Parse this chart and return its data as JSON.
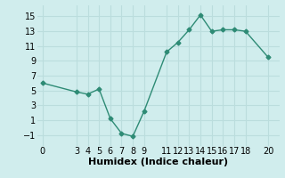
{
  "x": [
    0,
    3,
    4,
    5,
    6,
    7,
    8,
    9,
    11,
    12,
    13,
    14,
    15,
    16,
    17,
    18,
    20
  ],
  "y": [
    6,
    4.8,
    4.5,
    5.2,
    1.2,
    -0.8,
    -1.2,
    2.2,
    10.2,
    11.5,
    13.2,
    15.2,
    13.0,
    13.2,
    13.2,
    13.0,
    9.5
  ],
  "line_color": "#2E8B75",
  "marker": "D",
  "marker_size": 2.5,
  "bg_color": "#D0EDED",
  "grid_color": "#BBDDDD",
  "xlabel": "Humidex (Indice chaleur)",
  "xlabel_weight": "bold",
  "xlabel_fontsize": 8,
  "tick_fontsize": 7,
  "xlim": [
    -0.5,
    21
  ],
  "ylim": [
    -2.5,
    16.5
  ],
  "yticks": [
    -1,
    1,
    3,
    5,
    7,
    9,
    11,
    13,
    15
  ],
  "xticks": [
    0,
    3,
    4,
    5,
    6,
    7,
    8,
    9,
    11,
    12,
    13,
    14,
    15,
    16,
    17,
    18,
    20
  ]
}
